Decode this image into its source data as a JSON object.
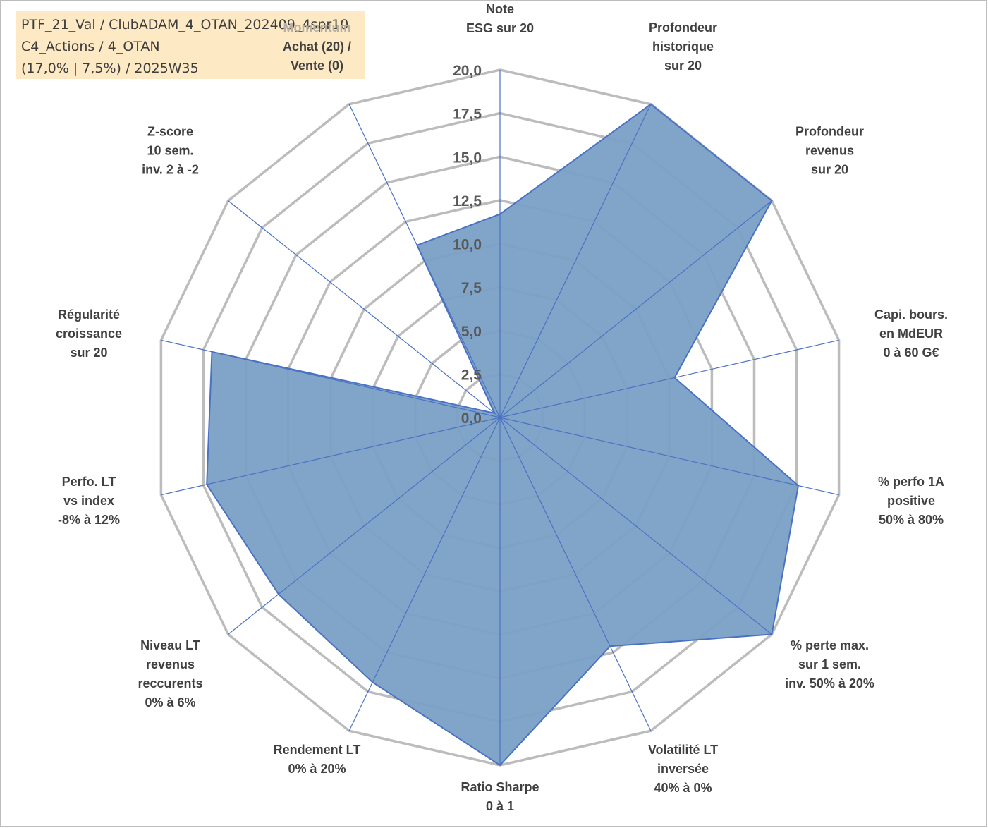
{
  "infobox": {
    "line1": "PTF_21_Val / ClubADAM_4_OTAN_202409_4spr10",
    "line2": "C4_Actions / 4_OTAN",
    "line3": "(17,0% | 7,5%) / 2025W35"
  },
  "chart_data": {
    "type": "radar",
    "grid": true,
    "range": [
      0,
      20
    ],
    "ticks": [
      "0,0",
      "2,5",
      "5,0",
      "7,5",
      "10,0",
      "12,5",
      "15,0",
      "17,5",
      "20,0"
    ],
    "tick_values": [
      0,
      2.5,
      5,
      7.5,
      10,
      12.5,
      15,
      17.5,
      20
    ],
    "axes": [
      {
        "lines": [
          "Note",
          "ESG sur 20"
        ]
      },
      {
        "lines": [
          "Profondeur",
          "historique",
          "sur 20"
        ]
      },
      {
        "lines": [
          "Profondeur",
          "revenus",
          "sur 20"
        ]
      },
      {
        "lines": [
          "Capi. bours.",
          "en MdEUR",
          "0 à 60 G€"
        ]
      },
      {
        "lines": [
          "% perfo 1A",
          "positive",
          "50% à 80%"
        ]
      },
      {
        "lines": [
          "% perte max.",
          "sur 1 sem.",
          "inv. 50% à 20%"
        ]
      },
      {
        "lines": [
          "Volatilité LT",
          "inversée",
          "40% à 0%"
        ]
      },
      {
        "lines": [
          "Ratio Sharpe",
          "0 à 1"
        ]
      },
      {
        "lines": [
          "Rendement LT",
          "0% à 20%"
        ]
      },
      {
        "lines": [
          "Niveau LT",
          "revenus",
          "reccurents",
          "0% à 6%"
        ]
      },
      {
        "lines": [
          "Perfo. LT",
          "vs index",
          "-8% à 12%"
        ]
      },
      {
        "lines": [
          "Régularité",
          "croissance",
          "sur 20"
        ]
      },
      {
        "lines": [
          "Z-score",
          "10 sem.",
          "inv. 2 à -2"
        ]
      },
      {
        "head": "Momentum",
        "lines": [
          "Achat (20) /",
          "Vente (0)"
        ]
      }
    ],
    "series": [
      {
        "values": [
          11.7,
          20,
          20,
          10.3,
          17.6,
          20,
          14.6,
          20,
          16.9,
          16.3,
          17.3,
          17.0,
          0.4,
          11.0
        ],
        "fill": "#7a9fc6",
        "stroke": "#4a72c4"
      }
    ],
    "grid_color": "#bcbcbc",
    "spoke_color": "#4a72c4"
  }
}
